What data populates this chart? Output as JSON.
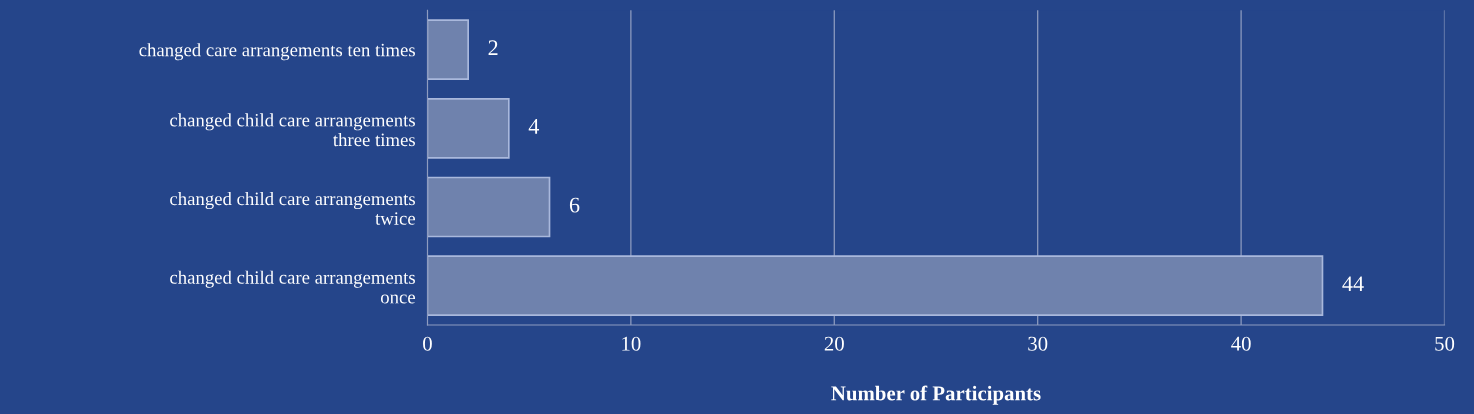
{
  "chart_data": {
    "type": "bar",
    "orientation": "horizontal",
    "categories": [
      "changed care arrangements ten times",
      "changed child care arrangements\nthree times",
      "changed child care arrangements\ntwice",
      "changed child care arrangements\nonce"
    ],
    "values": [
      2,
      4,
      6,
      44
    ],
    "color": "#6f82ad",
    "xlabel": "Number of Participants",
    "xlim": [
      0,
      50
    ],
    "xticks": [
      0,
      10,
      20,
      30,
      40,
      50
    ],
    "grid": "x",
    "data_labels": true,
    "legend": false
  }
}
